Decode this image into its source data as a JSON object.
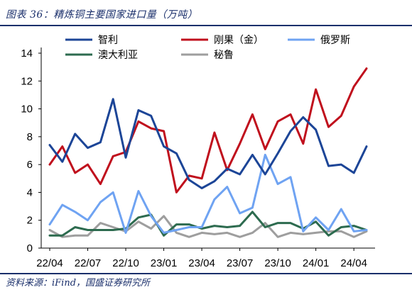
{
  "header": {
    "title": "图表 36：精炼铜主要国家进口量（万吨）"
  },
  "footer": {
    "source": "资料来源：iFind，国盛证券研究所"
  },
  "chart_data": {
    "type": "line",
    "title": "图表 36：精炼铜主要国家进口量（万吨）",
    "ylim": [
      0,
      14
    ],
    "yticks": [
      0,
      2,
      4,
      6,
      8,
      10,
      12,
      14
    ],
    "x": [
      "22/04",
      "22/05",
      "22/06",
      "22/07",
      "22/08",
      "22/09",
      "22/10",
      "22/11",
      "22/12",
      "23/01",
      "23/02",
      "23/03",
      "23/04",
      "23/05",
      "23/06",
      "23/07",
      "23/08",
      "23/09",
      "23/10",
      "23/11",
      "23/12",
      "24/01",
      "24/02",
      "24/03",
      "24/04",
      "24/05"
    ],
    "xtick_labels": [
      "22/04",
      "22/07",
      "22/10",
      "23/01",
      "23/04",
      "23/07",
      "23/10",
      "24/01",
      "24/04"
    ],
    "legend_position": "top",
    "grid": false,
    "series": [
      {
        "name": "智利",
        "color": "#1c4597",
        "values": [
          7.4,
          6.2,
          8.2,
          7.2,
          7.6,
          10.7,
          6.5,
          9.9,
          9.5,
          7.3,
          6.8,
          4.9,
          4.3,
          4.8,
          5.7,
          5.3,
          6.7,
          5.3,
          6.8,
          8.4,
          9.4,
          8.5,
          5.9,
          6.0,
          5.4,
          7.3
        ]
      },
      {
        "name": "刚果（金）",
        "color": "#c0101d",
        "values": [
          6.0,
          7.3,
          5.4,
          6.0,
          4.6,
          6.6,
          6.9,
          9.1,
          8.6,
          8.4,
          4.0,
          5.2,
          5.0,
          8.3,
          5.6,
          7.5,
          9.6,
          7.1,
          9.1,
          9.6,
          7.5,
          11.4,
          8.7,
          9.5,
          11.6,
          12.9
        ]
      },
      {
        "name": "俄罗斯",
        "color": "#6fa3f2",
        "values": [
          1.7,
          3.1,
          2.6,
          2.0,
          3.3,
          4.0,
          1.1,
          4.1,
          2.3,
          1.1,
          1.3,
          1.5,
          1.5,
          3.5,
          4.4,
          2.5,
          2.9,
          6.7,
          4.6,
          5.1,
          1.2,
          2.2,
          1.3,
          2.8,
          1.2,
          1.3
        ]
      },
      {
        "name": "澳大利亚",
        "color": "#2d6b4f",
        "values": [
          0.9,
          0.9,
          1.5,
          1.3,
          1.3,
          1.3,
          1.4,
          2.2,
          2.4,
          0.9,
          1.7,
          1.7,
          1.4,
          1.6,
          1.5,
          1.6,
          2.6,
          1.5,
          1.8,
          1.8,
          1.4,
          1.9,
          0.9,
          1.5,
          1.6,
          1.3
        ]
      },
      {
        "name": "秘鲁",
        "color": "#9e9e9e",
        "values": [
          1.3,
          0.8,
          0.9,
          0.9,
          1.8,
          1.5,
          1.2,
          1.9,
          1.4,
          2.3,
          1.1,
          0.8,
          1.1,
          1.0,
          1.1,
          0.8,
          1.1,
          1.8,
          0.8,
          1.1,
          1.0,
          1.1,
          1.2,
          1.2,
          0.8,
          1.2
        ]
      }
    ]
  }
}
